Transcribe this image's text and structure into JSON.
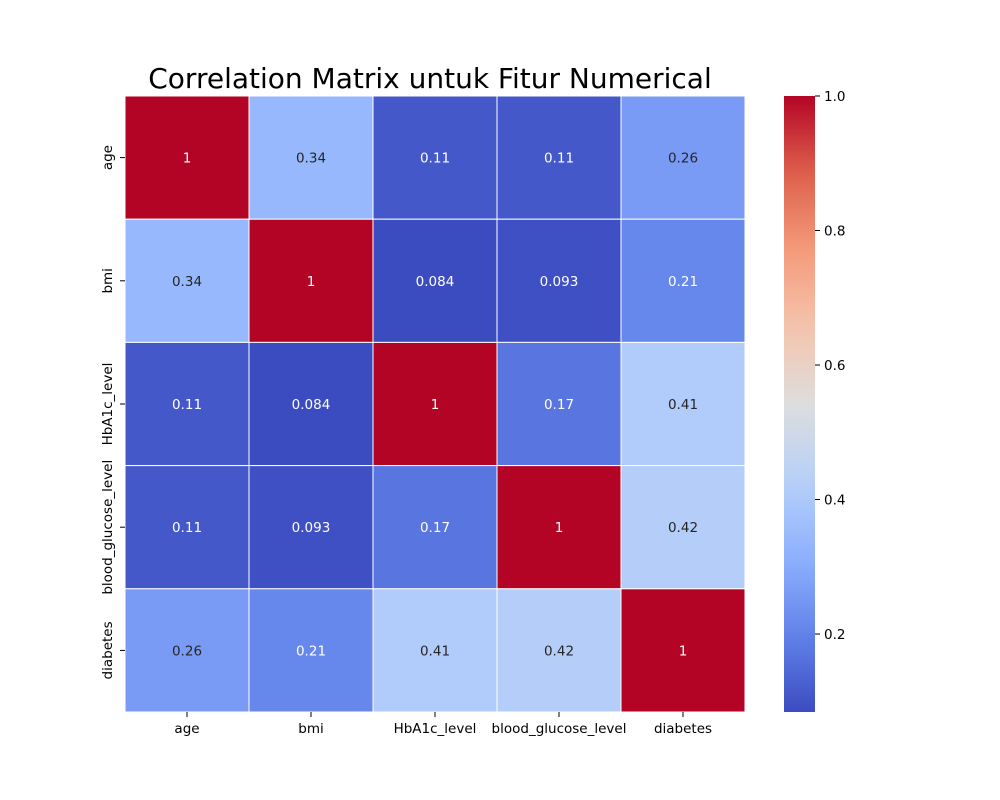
{
  "chart_data": {
    "type": "heatmap",
    "title": "Correlation Matrix untuk Fitur Numerical",
    "x_categories": [
      "age",
      "bmi",
      "HbA1c_level",
      "blood_glucose_level",
      "diabetes"
    ],
    "y_categories": [
      "age",
      "bmi",
      "HbA1c_level",
      "blood_glucose_level",
      "diabetes"
    ],
    "values": [
      [
        1,
        0.34,
        0.11,
        0.11,
        0.26
      ],
      [
        0.34,
        1,
        0.084,
        0.093,
        0.21
      ],
      [
        0.11,
        0.084,
        1,
        0.17,
        0.41
      ],
      [
        0.11,
        0.093,
        0.17,
        1,
        0.42
      ],
      [
        0.26,
        0.21,
        0.41,
        0.42,
        1
      ]
    ],
    "cell_labels": [
      [
        "1",
        "0.34",
        "0.11",
        "0.11",
        "0.26"
      ],
      [
        "0.34",
        "1",
        "0.084",
        "0.093",
        "0.21"
      ],
      [
        "0.11",
        "0.084",
        "1",
        "0.17",
        "0.41"
      ],
      [
        "0.11",
        "0.093",
        "0.17",
        "1",
        "0.42"
      ],
      [
        "0.26",
        "0.21",
        "0.41",
        "0.42",
        "1"
      ]
    ],
    "colormap": "coolwarm",
    "color_range": [
      0.084,
      1.0
    ],
    "colorbar_ticks": [
      "0.2",
      "0.4",
      "0.6",
      "0.8",
      "1.0"
    ],
    "colorbar_tick_values": [
      0.2,
      0.4,
      0.6,
      0.8,
      1.0
    ],
    "cell_border_color": "#ffffff",
    "annotation_dark_color": "#262626",
    "annotation_light_color": "#ffffff"
  }
}
